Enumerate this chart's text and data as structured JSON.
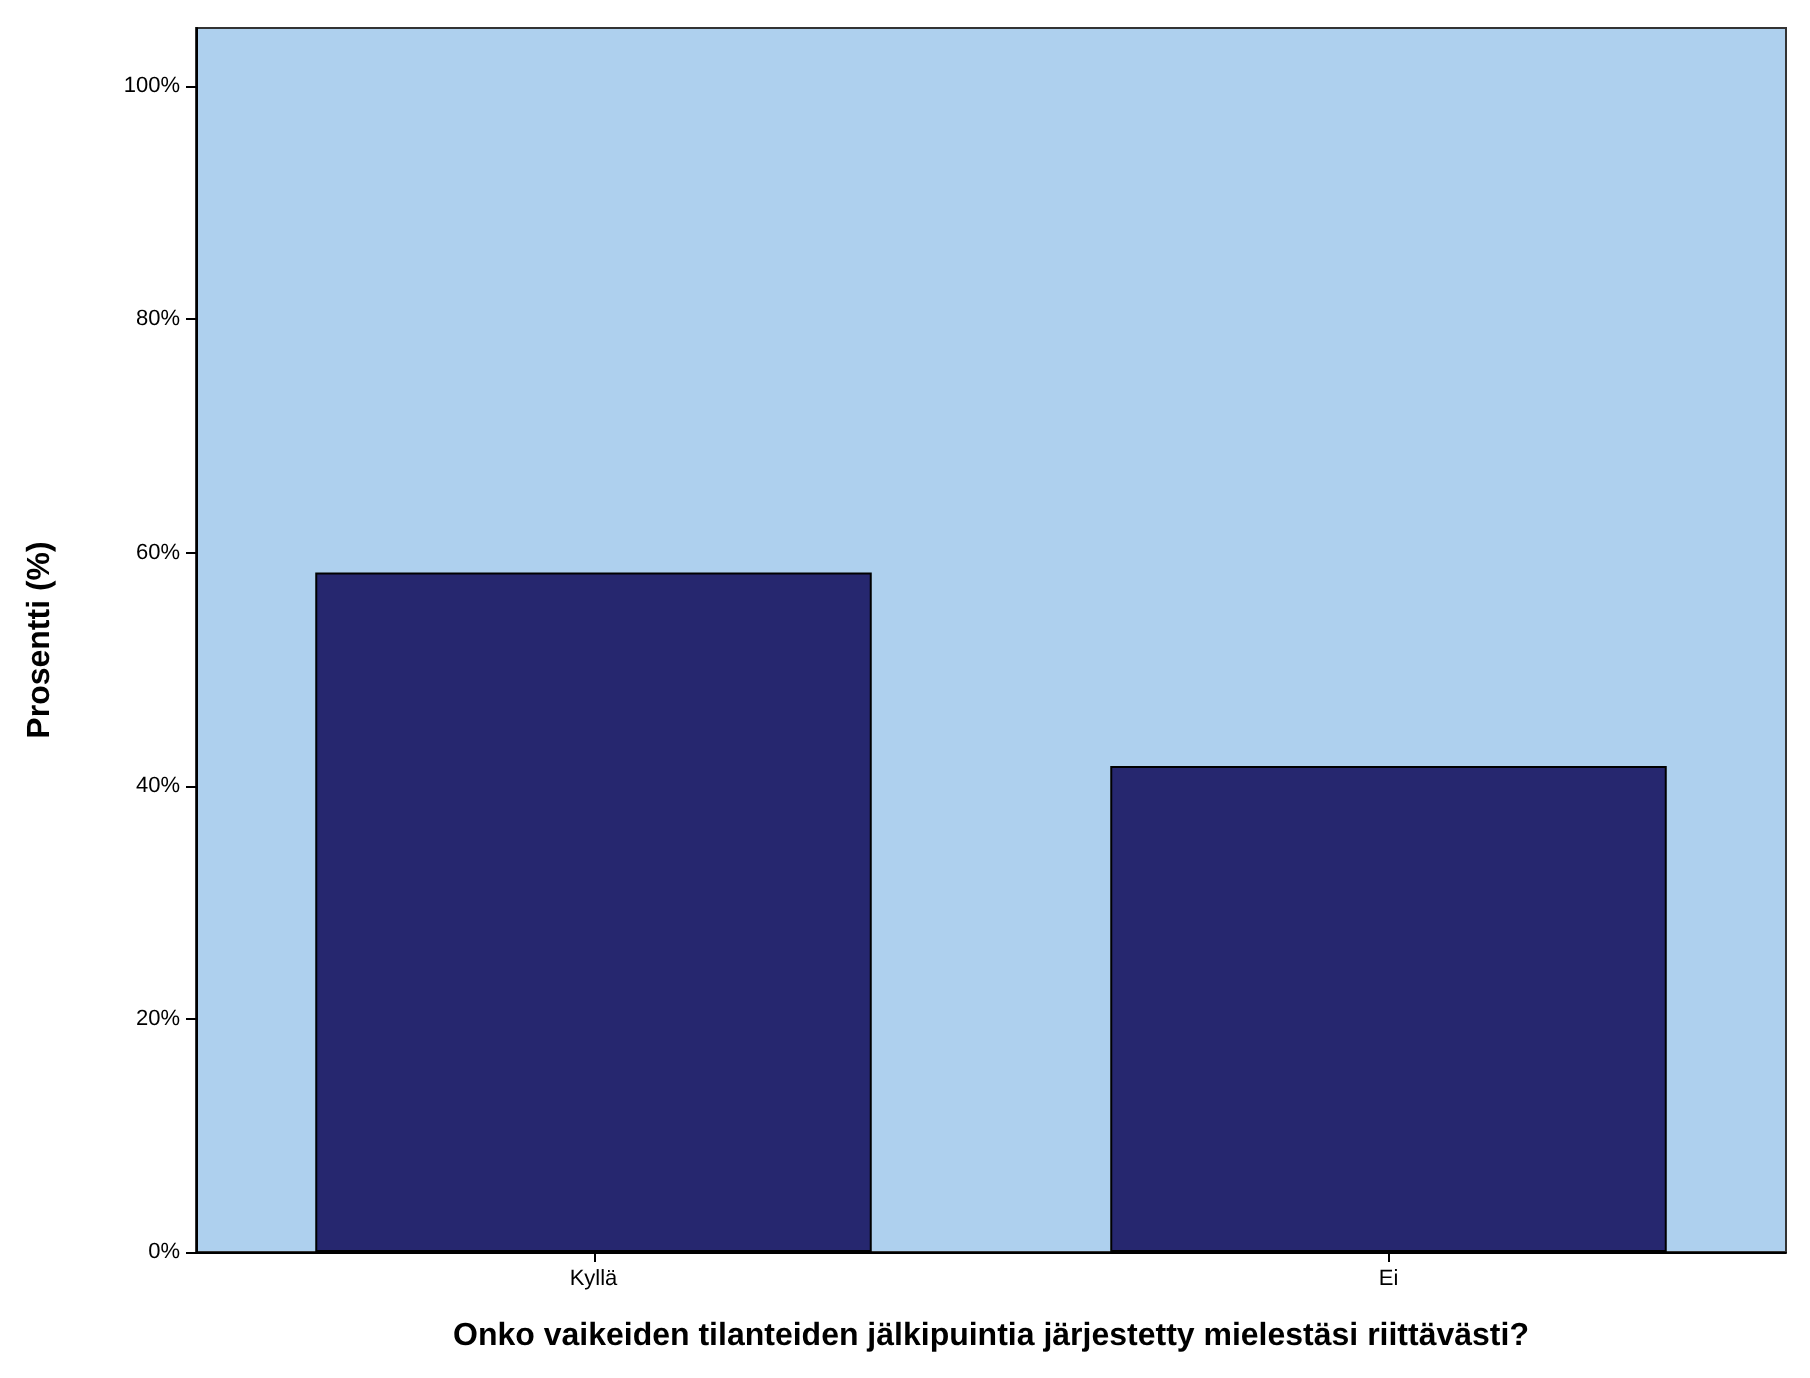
{
  "chart_data": {
    "type": "bar",
    "xlabel": "Onko vaikeiden tilanteiden jälkipuintia järjestetty mielestäsi riittävästi?",
    "ylabel": "Prosentti (%)",
    "categories": [
      "Kyllä",
      "Ei"
    ],
    "values": [
      58.3,
      41.7
    ],
    "color": "#26276f",
    "ylim": [
      0,
      105
    ],
    "yticks": [
      {
        "value": 0,
        "label": "0%"
      },
      {
        "value": 20,
        "label": "20%"
      },
      {
        "value": 40,
        "label": "40%"
      },
      {
        "value": 60,
        "label": "60%"
      },
      {
        "value": 80,
        "label": "80%"
      },
      {
        "value": 100,
        "label": "100%"
      }
    ],
    "grid": false
  }
}
